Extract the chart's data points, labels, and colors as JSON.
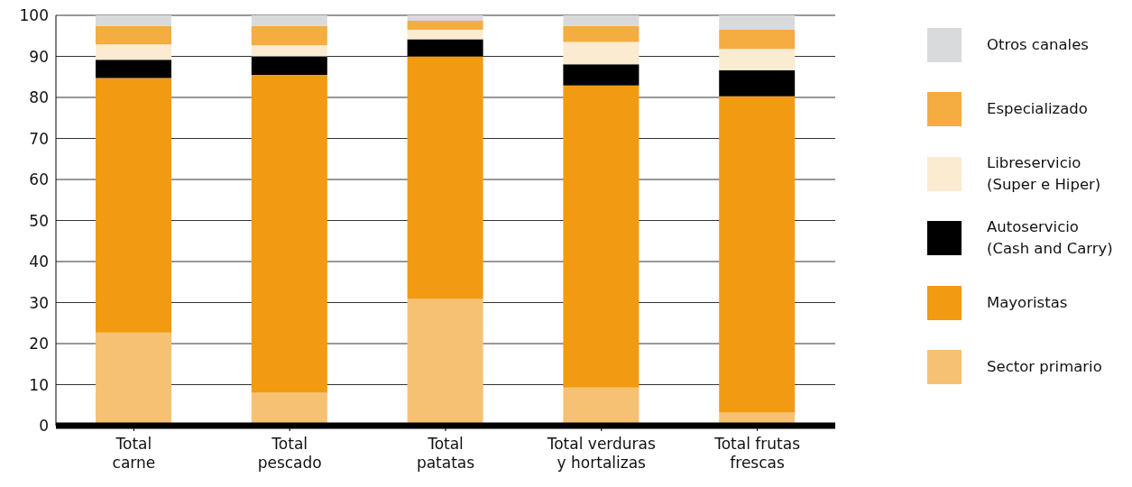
{
  "chart_data": {
    "type": "bar",
    "stacked": true,
    "categories": [
      "Total carne",
      "Total pescado",
      "Total patatas",
      "Total verduras y hortalizas",
      "Total frutas frescas"
    ],
    "series": [
      {
        "name": "Sector primario",
        "color": "#f7c173",
        "values": [
          22.7,
          8.0,
          30.9,
          9.3,
          3.2
        ]
      },
      {
        "name": "Mayoristas",
        "color": "#f29a11",
        "values": [
          62.0,
          77.5,
          59.1,
          73.6,
          77.1
        ]
      },
      {
        "name": "Autoservicio\n(Cash and Carry)",
        "color": "#000000",
        "values": [
          4.5,
          4.5,
          4.2,
          5.2,
          6.3
        ]
      },
      {
        "name": "Libreservicio\n(Super e Hiper)",
        "color": "#fbebd1",
        "values": [
          3.7,
          2.7,
          2.3,
          5.4,
          5.2
        ]
      },
      {
        "name": "Especializado",
        "color": "#f5ad41",
        "values": [
          4.5,
          4.7,
          2.2,
          3.9,
          4.7
        ]
      },
      {
        "name": "Otros canales",
        "color": "#d9dadc",
        "values": [
          2.6,
          2.6,
          1.3,
          2.6,
          3.5
        ]
      }
    ],
    "ylim": [
      0,
      100
    ],
    "yticks": [
      0,
      10,
      20,
      30,
      40,
      50,
      60,
      70,
      80,
      90,
      100
    ],
    "grid": "y",
    "legend": "right"
  }
}
